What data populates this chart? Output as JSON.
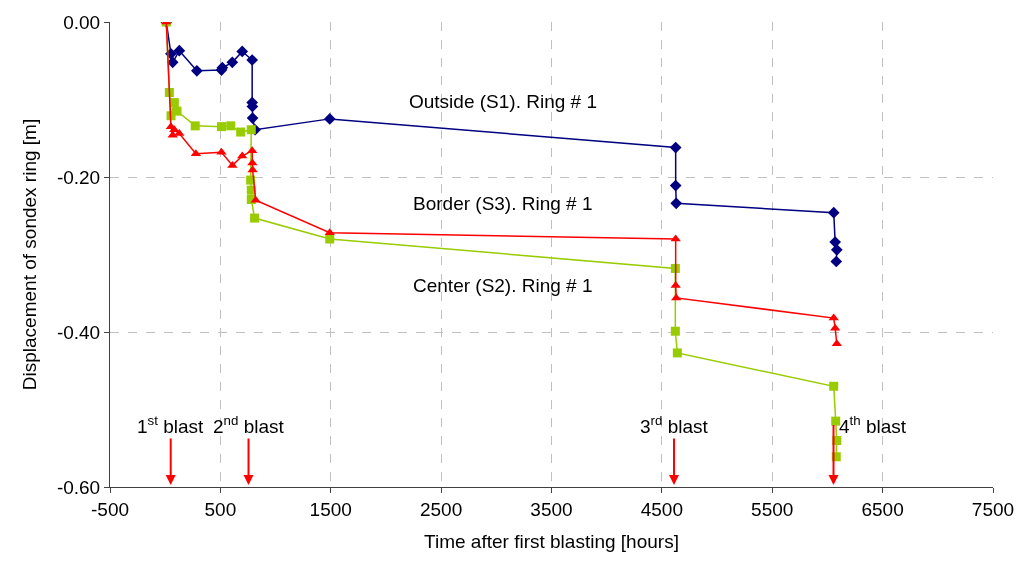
{
  "chart_data": {
    "type": "line",
    "xlabel": "Time after first blasting [hours]",
    "ylabel": "Displacement of sondex ring [m]",
    "xlim": [
      -500,
      7500
    ],
    "xticks": [
      -500,
      500,
      1500,
      2500,
      3500,
      4500,
      5500,
      6500,
      7500
    ],
    "ylim": [
      -0.6,
      0.0
    ],
    "yticks": [
      {
        "value": 0,
        "label": "0.00"
      },
      {
        "value": -0.2,
        "label": "-0.20"
      },
      {
        "value": -0.4,
        "label": "-0.40"
      },
      {
        "value": -0.6,
        "label": "-0.60"
      }
    ],
    "grid": true,
    "line_style": "solid",
    "series": [
      {
        "name": "Outside (S1). Ring # 1",
        "color": "#000080",
        "marker": "diamond",
        "x": [
          10,
          52,
          68,
          128,
          287,
          510,
          518,
          608,
          698,
          788,
          788,
          790,
          792,
          815,
          1491,
          4625,
          4625,
          4630,
          6057,
          6070,
          6085,
          6080
        ],
        "values": [
          0,
          -0.041,
          -0.052,
          -0.037,
          -0.063,
          -0.062,
          -0.059,
          -0.052,
          -0.038,
          -0.049,
          -0.104,
          -0.109,
          -0.124,
          -0.139,
          -0.125,
          -0.162,
          -0.211,
          -0.234,
          -0.246,
          -0.284,
          -0.294,
          -0.309
        ]
      },
      {
        "name": "Center (S2). Ring # 1",
        "color": "#99cc00",
        "marker": "square",
        "x": [
          10,
          38,
          53,
          83,
          107,
          272,
          510,
          594,
          684,
          780,
          774,
          780,
          780,
          810,
          1491,
          4622,
          4622,
          4640,
          6057,
          6075,
          6085,
          6080
        ],
        "values": [
          0,
          -0.091,
          -0.121,
          -0.104,
          -0.115,
          -0.134,
          -0.135,
          -0.134,
          -0.142,
          -0.139,
          -0.204,
          -0.217,
          -0.229,
          -0.253,
          -0.28,
          -0.318,
          -0.399,
          -0.427,
          -0.47,
          -0.515,
          -0.54,
          -0.561
        ]
      },
      {
        "name": "Border (S3). Ring # 1",
        "color": "#ff0000",
        "marker": "triangle",
        "x": [
          10,
          52,
          68,
          83,
          128,
          278,
          510,
          609,
          698,
          788,
          790,
          792,
          820,
          1491,
          4625,
          4625,
          4630,
          6057,
          6070,
          6085
        ],
        "values": [
          0,
          -0.135,
          -0.146,
          -0.139,
          -0.144,
          -0.17,
          -0.168,
          -0.185,
          -0.173,
          -0.166,
          -0.182,
          -0.191,
          -0.23,
          -0.272,
          -0.28,
          -0.34,
          -0.356,
          -0.382,
          -0.395,
          -0.415
        ]
      }
    ],
    "ref_lines": [
      {
        "axis": "x",
        "value": 50,
        "label": "1$^{st}$ blast",
        "color": "#ff0000"
      },
      {
        "axis": "x",
        "value": 755,
        "label": "2$^{nd}$ blast",
        "color": "#ff0000"
      },
      {
        "axis": "x",
        "value": 4610,
        "label": "3$^{rd}$ blast",
        "color": "#ff0000"
      },
      {
        "axis": "x",
        "value": 6055,
        "label": "4$^{th}$ blast",
        "color": "#ff0000"
      }
    ]
  }
}
